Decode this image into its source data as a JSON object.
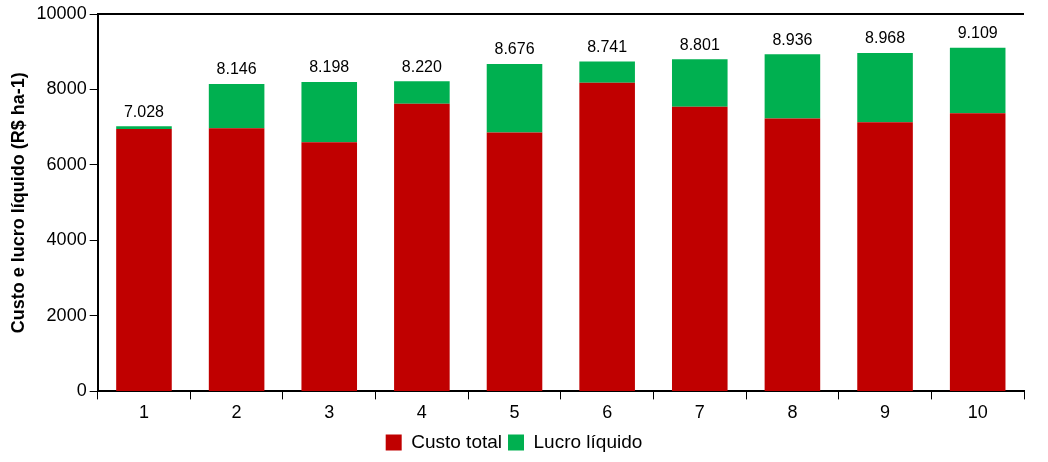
{
  "chart_data": {
    "type": "bar",
    "stacked": true,
    "ylabel": "Custo e lucro líquido (R$ ha-1)",
    "categories": [
      "1",
      "2",
      "3",
      "4",
      "5",
      "6",
      "7",
      "8",
      "9",
      "10"
    ],
    "series": [
      {
        "name": "Custo total",
        "color": "#c00000",
        "values": [
          6950,
          6975,
          6600,
          7620,
          6860,
          8180,
          7540,
          7230,
          7130,
          7370
        ]
      },
      {
        "name": "Lucro líquido",
        "color": "#00b050",
        "values": [
          78,
          1171,
          1598,
          600,
          1816,
          561,
          1261,
          1706,
          1838,
          1739
        ]
      }
    ],
    "totals": [
      "7.028",
      "8.146",
      "8.198",
      "8.220",
      "8.676",
      "8.741",
      "8.801",
      "8.936",
      "8.968",
      "9.109"
    ],
    "ylim": [
      0,
      10000
    ],
    "yticks": [
      0,
      2000,
      4000,
      6000,
      8000,
      10000
    ],
    "grid": false,
    "legend": "bottom"
  }
}
